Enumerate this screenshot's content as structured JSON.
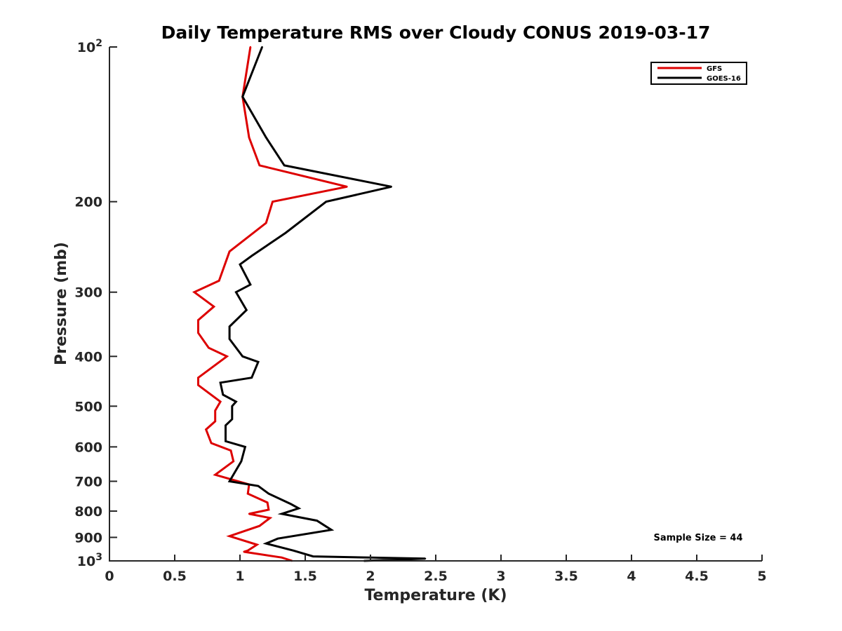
{
  "chart_data": {
    "type": "line",
    "title": "Daily Temperature RMS over Cloudy CONUS 2019-03-17",
    "xlabel": "Temperature (K)",
    "ylabel": "Pressure (mb)",
    "xlim": [
      0,
      5
    ],
    "ylim": [
      100,
      1000
    ],
    "yscale": "log",
    "yreversed": true,
    "grid": false,
    "legend_position": "top-right",
    "x_ticks": [
      {
        "value": 0,
        "label": "0"
      },
      {
        "value": 0.5,
        "label": "0.5"
      },
      {
        "value": 1,
        "label": "1"
      },
      {
        "value": 1.5,
        "label": "1.5"
      },
      {
        "value": 2,
        "label": "2"
      },
      {
        "value": 2.5,
        "label": "2.5"
      },
      {
        "value": 3,
        "label": "3"
      },
      {
        "value": 3.5,
        "label": "3.5"
      },
      {
        "value": 4,
        "label": "4"
      },
      {
        "value": 4.5,
        "label": "4.5"
      },
      {
        "value": 5,
        "label": "5"
      }
    ],
    "y_ticks": [
      {
        "value": 100,
        "label": "10",
        "sup": "2"
      },
      {
        "value": 200,
        "label": "200"
      },
      {
        "value": 300,
        "label": "300"
      },
      {
        "value": 400,
        "label": "400"
      },
      {
        "value": 500,
        "label": "500"
      },
      {
        "value": 600,
        "label": "600"
      },
      {
        "value": 700,
        "label": "700"
      },
      {
        "value": 800,
        "label": "800"
      },
      {
        "value": 900,
        "label": "900"
      },
      {
        "value": 1000,
        "label": "10",
        "sup": "3"
      }
    ],
    "series": [
      {
        "name": "GFS",
        "color": "#dd0000",
        "points": [
          [
            1.08,
            100
          ],
          [
            1.02,
            125
          ],
          [
            1.07,
            150
          ],
          [
            1.15,
            170
          ],
          [
            1.82,
            187
          ],
          [
            1.25,
            200
          ],
          [
            1.2,
            220
          ],
          [
            0.92,
            250
          ],
          [
            0.84,
            285
          ],
          [
            0.65,
            300
          ],
          [
            0.8,
            320
          ],
          [
            0.68,
            340
          ],
          [
            0.68,
            360
          ],
          [
            0.76,
            385
          ],
          [
            0.9,
            400
          ],
          [
            0.68,
            440
          ],
          [
            0.68,
            455
          ],
          [
            0.85,
            490
          ],
          [
            0.81,
            510
          ],
          [
            0.81,
            535
          ],
          [
            0.74,
            555
          ],
          [
            0.78,
            590
          ],
          [
            0.93,
            610
          ],
          [
            0.95,
            640
          ],
          [
            0.81,
            680
          ],
          [
            1.07,
            710
          ],
          [
            1.06,
            740
          ],
          [
            1.21,
            770
          ],
          [
            1.22,
            795
          ],
          [
            1.07,
            810
          ],
          [
            1.23,
            825
          ],
          [
            1.15,
            855
          ],
          [
            0.92,
            895
          ],
          [
            1.13,
            930
          ],
          [
            1.06,
            955
          ],
          [
            1.03,
            960
          ],
          [
            1.32,
            985
          ],
          [
            1.4,
            1000
          ]
        ]
      },
      {
        "name": "GOES-16",
        "color": "#000000",
        "points": [
          [
            1.17,
            100
          ],
          [
            1.02,
            125
          ],
          [
            1.2,
            150
          ],
          [
            1.34,
            170
          ],
          [
            2.16,
            187
          ],
          [
            1.66,
            200
          ],
          [
            1.35,
            230
          ],
          [
            1.09,
            255
          ],
          [
            1.0,
            265
          ],
          [
            1.08,
            290
          ],
          [
            0.97,
            300
          ],
          [
            1.05,
            325
          ],
          [
            0.92,
            350
          ],
          [
            0.92,
            370
          ],
          [
            1.02,
            400
          ],
          [
            1.14,
            410
          ],
          [
            1.09,
            440
          ],
          [
            0.85,
            450
          ],
          [
            0.87,
            475
          ],
          [
            0.97,
            490
          ],
          [
            0.94,
            500
          ],
          [
            0.94,
            530
          ],
          [
            0.89,
            545
          ],
          [
            0.89,
            585
          ],
          [
            1.04,
            600
          ],
          [
            1.01,
            640
          ],
          [
            0.92,
            700
          ],
          [
            1.14,
            715
          ],
          [
            1.22,
            740
          ],
          [
            1.39,
            775
          ],
          [
            1.45,
            790
          ],
          [
            1.32,
            810
          ],
          [
            1.59,
            835
          ],
          [
            1.7,
            870
          ],
          [
            1.29,
            905
          ],
          [
            1.2,
            925
          ],
          [
            1.41,
            955
          ],
          [
            1.56,
            980
          ],
          [
            2.42,
            990
          ],
          [
            1.95,
            1000
          ]
        ]
      }
    ],
    "annotations": [
      {
        "text": "Sample Size = 44"
      }
    ]
  }
}
